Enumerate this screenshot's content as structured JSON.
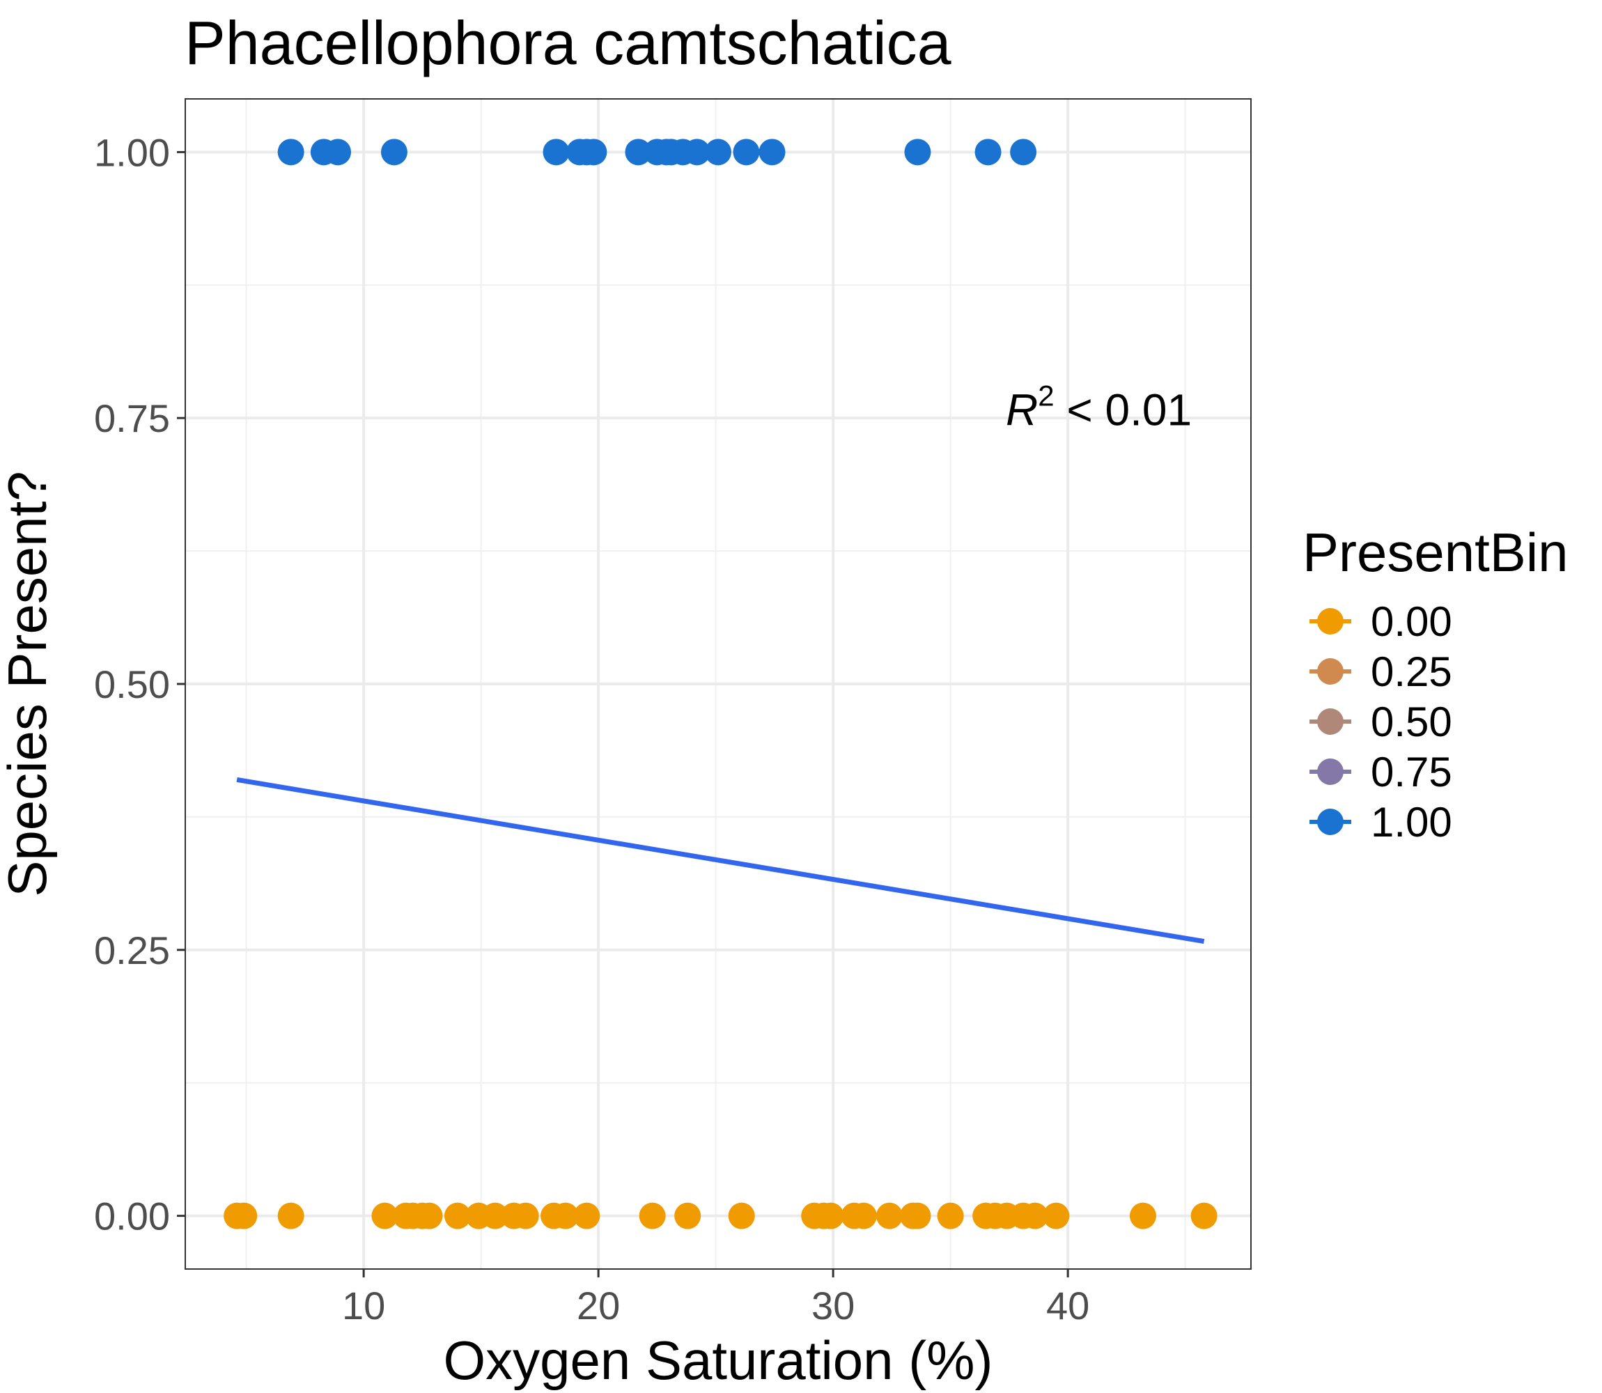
{
  "chart_data": {
    "type": "scatter",
    "title": "Phacellophora camtschatica",
    "xlabel": "Oxygen Saturation (%)",
    "ylabel": "Species Present?",
    "xlim": [
      2.4,
      47.8
    ],
    "ylim": [
      -0.05,
      1.05
    ],
    "x_ticks": [
      10,
      20,
      30,
      40
    ],
    "x_tick_labels": [
      "10",
      "20",
      "30",
      "40"
    ],
    "y_ticks": [
      0,
      0.25,
      0.5,
      0.75,
      1.0
    ],
    "y_tick_labels": [
      "0.00",
      "0.25",
      "0.50",
      "0.75",
      "1.00"
    ],
    "grid": true,
    "legend": {
      "title": "PresentBin",
      "placement": "right",
      "entries": [
        {
          "label": "0.00",
          "color": "#f09b00"
        },
        {
          "label": "0.25",
          "color": "#d08a50"
        },
        {
          "label": "0.50",
          "color": "#b0887a"
        },
        {
          "label": "0.75",
          "color": "#8478a8"
        },
        {
          "label": "1.00",
          "color": "#1a73d0"
        }
      ]
    },
    "annotation": {
      "italic": "R",
      "superscript": "2",
      "text": " < 0.01",
      "x": 43.5,
      "y": 0.73
    },
    "series": [
      {
        "color": "#1a73d0",
        "y": 1.0,
        "x": [
          6.9,
          8.3,
          8.9,
          11.3,
          18.2,
          19.2,
          19.5,
          19.8,
          21.7,
          22.5,
          22.9,
          23.1,
          23.6,
          24.2,
          25.1,
          26.3,
          27.4,
          33.6,
          36.6,
          38.1
        ]
      },
      {
        "color": "#f09b00",
        "y": 0.0,
        "x": [
          4.6,
          4.9,
          6.9,
          10.9,
          11.8,
          12.1,
          12.5,
          12.8,
          14.0,
          14.9,
          15.6,
          16.4,
          16.9,
          18.1,
          18.6,
          19.5,
          22.3,
          23.8,
          26.1,
          29.2,
          29.6,
          29.9,
          30.9,
          31.3,
          32.4,
          33.4,
          33.6,
          35.0,
          36.5,
          36.9,
          37.4,
          38.1,
          38.6,
          39.5,
          43.2,
          45.8
        ]
      }
    ],
    "trend_line": {
      "color": "#3366ee",
      "x": [
        4.6,
        45.8
      ],
      "y": [
        0.41,
        0.258
      ]
    }
  }
}
